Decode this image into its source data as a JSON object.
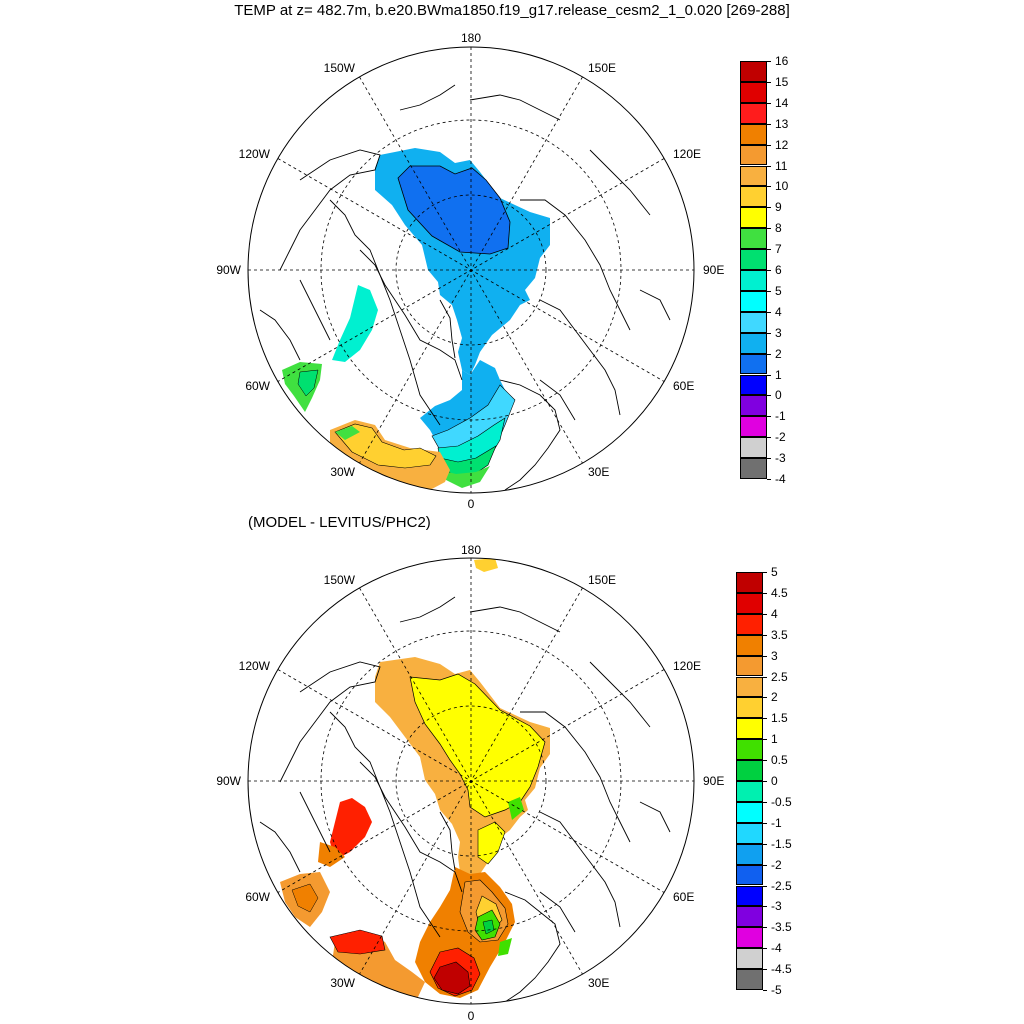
{
  "figure": {
    "title": "TEMP at z= 482.7m, b.e20.BWma1850.f19_g17.release_cesm2_1_0.020 [269-288]",
    "subtitle": "(MODEL - LEVITUS/PHC2)"
  },
  "longitude_labels": {
    "top": "180",
    "bottom": "0",
    "w150": "150W",
    "e150": "150E",
    "w120": "120W",
    "e120": "120E",
    "w90": "90W",
    "e90": "90E",
    "w60": "60W",
    "e60": "60E",
    "w30": "30W",
    "e30": "30E"
  },
  "colors": {
    "land_line": "#000000",
    "background": "#ffffff"
  },
  "top_colorbar": {
    "labels": [
      "16",
      "15",
      "14",
      "13",
      "12",
      "11",
      "10",
      "9",
      "8",
      "7",
      "6",
      "5",
      "4",
      "3",
      "2",
      "1",
      "0",
      "-1",
      "-2",
      "-3",
      "-4"
    ],
    "colors": [
      "#c00000",
      "#e00000",
      "#ff1c1c",
      "#f08000",
      "#f49a30",
      "#f8b040",
      "#ffd030",
      "#ffff00",
      "#40e040",
      "#00e070",
      "#00f0d0",
      "#00ffff",
      "#40d8ff",
      "#10b0f0",
      "#1070f0",
      "#0000ff",
      "#8000e0",
      "#e000e0",
      "#d0d0d0",
      "#707070"
    ]
  },
  "bottom_colorbar": {
    "labels": [
      "5",
      "4.5",
      "4",
      "3.5",
      "3",
      "2.5",
      "2",
      "1.5",
      "1",
      "0.5",
      "0",
      "-0.5",
      "-1",
      "-1.5",
      "-2",
      "-2.5",
      "-3",
      "-3.5",
      "-4",
      "-4.5",
      "-5"
    ],
    "colors": [
      "#c00000",
      "#e00000",
      "#ff2000",
      "#f08000",
      "#f49a30",
      "#f8b040",
      "#ffd030",
      "#ffff00",
      "#40e000",
      "#00d040",
      "#00f0b0",
      "#00ffff",
      "#20d8ff",
      "#10a0f0",
      "#1060f0",
      "#0000ff",
      "#8000e0",
      "#e000e0",
      "#d0d0d0",
      "#707070"
    ]
  }
}
